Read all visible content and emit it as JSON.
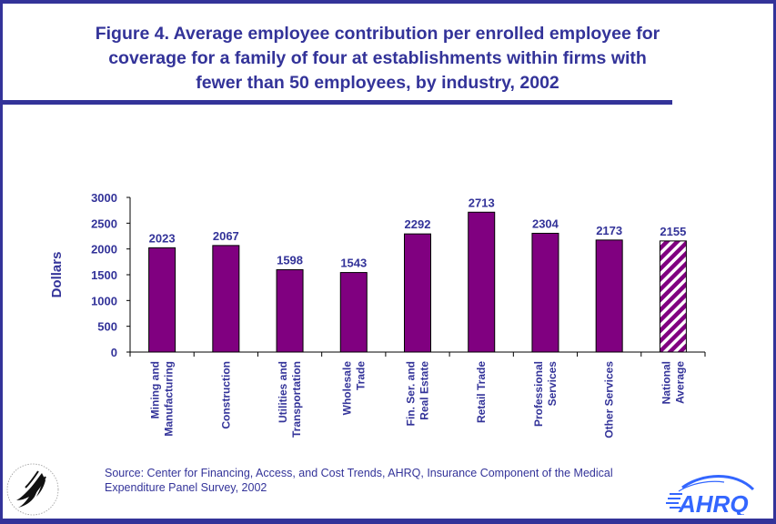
{
  "title_lines": [
    "Figure 4. Average employee contribution per enrolled employee for",
    "coverage for a family of four at establishments within firms with",
    "fewer than 50 employees, by industry, 2002"
  ],
  "source_lines": [
    "Source: Center for Financing, Access, and Cost Trends, AHRQ, Insurance Component of the Medical",
    "Expenditure Panel Survey, 2002"
  ],
  "logos": {
    "left": "hhs-department-seal",
    "right_text": "AHRQ"
  },
  "colors": {
    "frame": "#333399",
    "text": "#333399",
    "bar": "#800080",
    "bar_outline": "#000000",
    "hatch_light": "#ffffff",
    "ahrq_blue": "#3366ff"
  },
  "chart_data": {
    "type": "bar",
    "title": "Figure 4. Average employee contribution per enrolled employee for coverage for a family of four at establishments within firms with fewer than 50 employees, by industry, 2002",
    "xlabel": "",
    "ylabel": "Dollars",
    "ylim": [
      0,
      3000
    ],
    "yticks": [
      0,
      500,
      1000,
      1500,
      2000,
      2500,
      3000
    ],
    "grid": false,
    "legend": "none",
    "categories": [
      [
        "Mining and",
        "Manufacturing"
      ],
      [
        "Construction"
      ],
      [
        "Utilities and",
        "Transportation"
      ],
      [
        "Wholesale",
        "Trade"
      ],
      [
        "Fin. Ser. and",
        "Real Estate"
      ],
      [
        "Retail Trade"
      ],
      [
        "Professional",
        "Services"
      ],
      [
        "Other Services"
      ],
      [
        "National",
        "Average"
      ]
    ],
    "values": [
      2023,
      2067,
      1598,
      1543,
      2292,
      2713,
      2304,
      2173,
      2155
    ],
    "data_labels": [
      "2023",
      "2067",
      "1598",
      "1543",
      "2292",
      "2713",
      "2304",
      "2173",
      "2155"
    ],
    "highlight": {
      "index": 8,
      "style": "diagonal-hatch"
    }
  }
}
